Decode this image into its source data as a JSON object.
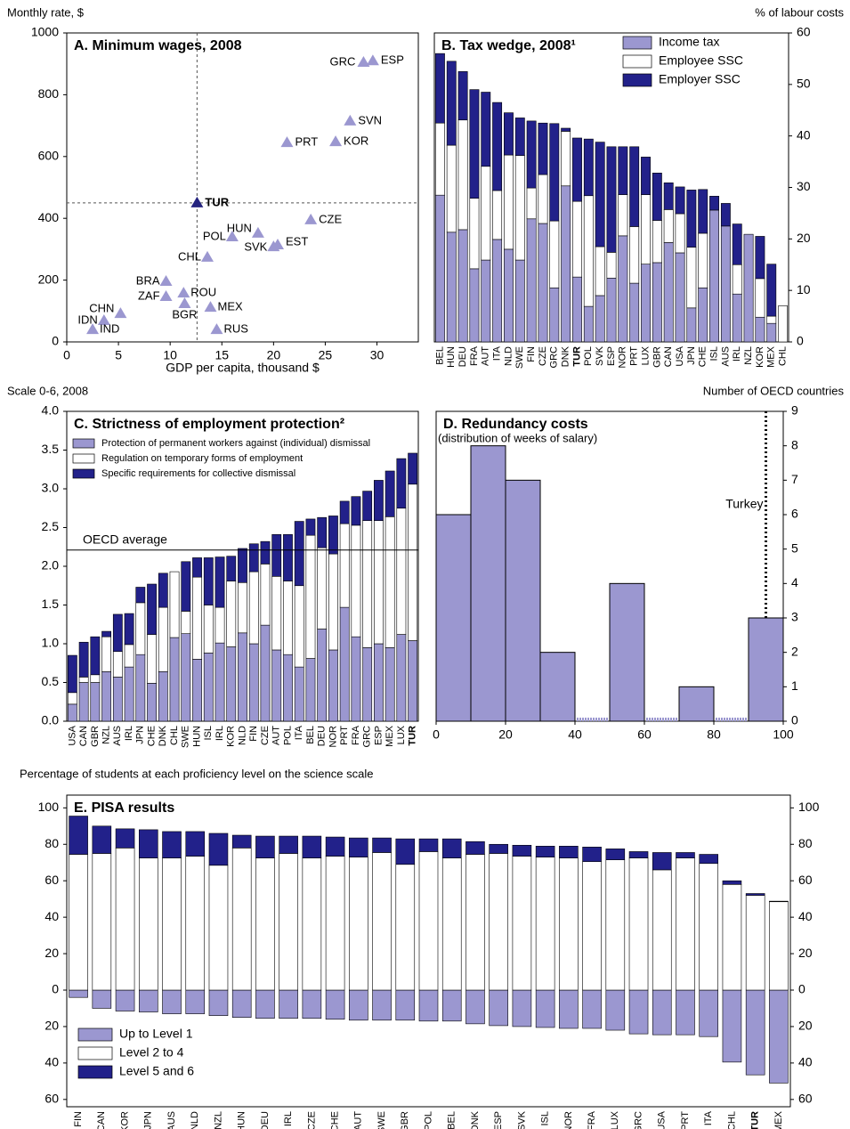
{
  "chart_data": [
    {
      "type": "scatter",
      "title": "A. Minimum wages, 2008",
      "y_label": "Monthly rate, $",
      "x_label": "GDP per capita, thousand $",
      "xlim": [
        0,
        34
      ],
      "ylim": [
        0,
        1000
      ],
      "xticks": [
        0,
        5,
        10,
        15,
        20,
        25,
        30
      ],
      "yticks": [
        0,
        200,
        400,
        600,
        800,
        1000
      ],
      "color": "#9b97d0",
      "highlight_color": "#24237f",
      "points": [
        {
          "label": "GRC",
          "x": 28.7,
          "y": 905
        },
        {
          "label": "ESP",
          "x": 29.6,
          "y": 910
        },
        {
          "label": "SVN",
          "x": 27.4,
          "y": 715
        },
        {
          "label": "PRT",
          "x": 21.3,
          "y": 645
        },
        {
          "label": "KOR",
          "x": 26.0,
          "y": 648
        },
        {
          "label": "TUR",
          "x": 12.6,
          "y": 450,
          "highlight": true
        },
        {
          "label": "CZE",
          "x": 23.6,
          "y": 395
        },
        {
          "label": "HUN",
          "x": 18.5,
          "y": 352
        },
        {
          "label": "POL",
          "x": 16.0,
          "y": 340
        },
        {
          "label": "EST",
          "x": 20.4,
          "y": 314
        },
        {
          "label": "SVK",
          "x": 20.0,
          "y": 308
        },
        {
          "label": "CHL",
          "x": 13.6,
          "y": 274
        },
        {
          "label": "BRA",
          "x": 9.6,
          "y": 196
        },
        {
          "label": "ZAF",
          "x": 9.6,
          "y": 147
        },
        {
          "label": "ROU",
          "x": 11.3,
          "y": 158
        },
        {
          "label": "BGR",
          "x": 11.4,
          "y": 124
        },
        {
          "label": "MEX",
          "x": 13.9,
          "y": 112
        },
        {
          "label": "CHN",
          "x": 5.2,
          "y": 92
        },
        {
          "label": "IDN",
          "x": 3.6,
          "y": 69
        },
        {
          "label": "IND",
          "x": 2.5,
          "y": 40
        },
        {
          "label": "RUS",
          "x": 14.5,
          "y": 40
        }
      ]
    },
    {
      "type": "bar",
      "title": "B. Tax wedge, 2008¹",
      "y_label": "% of labour costs",
      "ylim": [
        0,
        60
      ],
      "yticks": [
        0,
        10,
        20,
        30,
        40,
        50,
        60
      ],
      "highlight": "TUR",
      "categories": [
        "BEL",
        "HUN",
        "DEU",
        "FRA",
        "AUT",
        "ITA",
        "NLD",
        "SWE",
        "FIN",
        "CZE",
        "GRC",
        "DNK",
        "TUR",
        "POL",
        "SVK",
        "ESP",
        "NOR",
        "PRT",
        "LUX",
        "GBR",
        "CAN",
        "USA",
        "JPN",
        "CHE",
        "ISL",
        "AUS",
        "IRL",
        "NZL",
        "KOR",
        "MEX",
        "CHL"
      ],
      "series": [
        {
          "name": "Income tax",
          "color": "#9b97d0",
          "values": [
            28.5,
            21.3,
            21.8,
            14.2,
            15.9,
            19.9,
            18.0,
            15.9,
            23.9,
            23.0,
            10.5,
            30.3,
            12.6,
            6.9,
            9.0,
            12.4,
            20.6,
            11.4,
            15.1,
            15.4,
            19.3,
            17.3,
            6.6,
            10.5,
            25.6,
            22.5,
            9.3,
            20.9,
            4.8,
            3.6,
            0
          ]
        },
        {
          "name": "Employee SSC",
          "color": "#ffffff",
          "values": [
            14.0,
            16.9,
            21.3,
            13.7,
            18.2,
            9.5,
            18.3,
            20.3,
            6.0,
            9.5,
            13.0,
            10.6,
            14.7,
            21.5,
            9.5,
            5.0,
            8.0,
            11.0,
            13.5,
            8.2,
            6.4,
            7.6,
            11.8,
            10.6,
            0,
            0,
            5.7,
            0,
            7.5,
            1.4,
            7.0
          ]
        },
        {
          "name": "Employer SSC",
          "color": "#22218a",
          "values": [
            13.5,
            16.3,
            9.4,
            21.1,
            14.4,
            17.1,
            8.2,
            7.3,
            13.0,
            10.0,
            18.9,
            0.6,
            12.3,
            11.0,
            20.3,
            20.5,
            9.3,
            15.5,
            7.3,
            9.2,
            5.2,
            5.2,
            11.1,
            8.5,
            2.7,
            4.4,
            7.9,
            0,
            8.2,
            10.1,
            0
          ]
        }
      ]
    },
    {
      "type": "bar",
      "title": "C. Strictness of employment protection²",
      "y_label": "Scale 0-6, 2008",
      "ylim": [
        0,
        4
      ],
      "yticks": [
        {
          "value": 0,
          "label": "0.0"
        },
        0.5,
        {
          "value": 1,
          "label": "1.0"
        },
        1.5,
        {
          "value": 2,
          "label": "2.0"
        },
        2.5,
        {
          "value": 3,
          "label": "3.0"
        },
        3.5,
        {
          "value": 4,
          "label": "4.0"
        }
      ],
      "highlight": "TUR",
      "reference_line": {
        "label": "OECD average",
        "y": 2.21
      },
      "categories": [
        "USA",
        "CAN",
        "GBR",
        "NZL",
        "AUS",
        "IRL",
        "JPN",
        "CHE",
        "DNK",
        "CHL",
        "SWE",
        "HUN",
        "ISL",
        "IRL",
        "KOR",
        "NLD",
        "FIN",
        "CZE",
        "AUT",
        "POL",
        "ITA",
        "BEL",
        "DEU",
        "NOR",
        "PRT",
        "FRA",
        "GRC",
        "ESP",
        "MEX",
        "LUX",
        "TUR"
      ],
      "series": [
        {
          "name": "Protection of permanent workers against (individual) dismissal",
          "color": "#9b97d0",
          "values": [
            0.22,
            0.5,
            0.5,
            0.64,
            0.57,
            0.7,
            0.86,
            0.49,
            0.64,
            1.08,
            1.13,
            0.8,
            0.88,
            1.01,
            0.96,
            1.14,
            1.0,
            1.24,
            0.92,
            0.86,
            0.7,
            0.81,
            1.19,
            0.92,
            1.47,
            1.09,
            0.95,
            1.0,
            0.95,
            1.12,
            1.04
          ]
        },
        {
          "name": "Regulation on temporary forms of employment",
          "color": "#ffffff",
          "values": [
            0.15,
            0.07,
            0.1,
            0.45,
            0.33,
            0.29,
            0.67,
            0.63,
            0.83,
            0.85,
            0.29,
            1.06,
            0.62,
            0.46,
            0.85,
            0.65,
            0.93,
            0.79,
            0.95,
            0.95,
            1.05,
            1.59,
            1.05,
            1.24,
            1.08,
            1.44,
            1.64,
            1.59,
            1.69,
            1.63,
            2.02
          ]
        },
        {
          "name": "Specific requirements for collective dismissal",
          "color": "#22218a",
          "values": [
            0.48,
            0.45,
            0.49,
            0.07,
            0.48,
            0.4,
            0.2,
            0.65,
            0.44,
            0,
            0.64,
            0.25,
            0.61,
            0.65,
            0.32,
            0.44,
            0.36,
            0.29,
            0.54,
            0.6,
            0.83,
            0.21,
            0.39,
            0.49,
            0.29,
            0.37,
            0.38,
            0.52,
            0.59,
            0.64,
            0.4
          ]
        }
      ]
    },
    {
      "type": "histogram",
      "title": "D. Redundancy costs",
      "subtitle": "(distribution of weeks of salary)",
      "y_label": "Number of OECD countries",
      "xlim": [
        0,
        100
      ],
      "ylim": [
        0,
        9
      ],
      "xticks": [
        0,
        20,
        40,
        60,
        80,
        100
      ],
      "yticks": [
        0,
        1,
        2,
        3,
        4,
        5,
        6,
        7,
        8,
        9
      ],
      "color": "#9b97d0",
      "bins": [
        0,
        10,
        20,
        30,
        40,
        50,
        60,
        70,
        80,
        90,
        100
      ],
      "values": [
        6,
        8,
        7,
        2,
        0,
        4,
        0,
        1,
        0,
        3
      ],
      "reference_line": {
        "label": "Turkey",
        "x": 95
      }
    },
    {
      "type": "bar",
      "title": "E. PISA results",
      "y_label": "Percentage of students at each proficiency level on the science scale",
      "ylim": [
        -64,
        107
      ],
      "yticks": [
        {
          "value": -60,
          "label": "60"
        },
        {
          "value": -40,
          "label": "40"
        },
        {
          "value": -20,
          "label": "20"
        },
        0,
        20,
        40,
        60,
        80,
        100
      ],
      "highlight": "TUR",
      "categories": [
        "FIN",
        "CAN",
        "KOR",
        "JPN",
        "AUS",
        "NLD",
        "NZL",
        "HUN",
        "DEU",
        "IRL",
        "CZE",
        "CHE",
        "AUT",
        "SWE",
        "GBR",
        "POL",
        "BEL",
        "DNK",
        "ESP",
        "SVK",
        "ISL",
        "NOR",
        "FRA",
        "LUX",
        "GRC",
        "USA",
        "PRT",
        "ITA",
        "CHL",
        "TUR",
        "MEX"
      ],
      "series": [
        {
          "name": "Up to Level 1",
          "color": "#9b97d0",
          "values": [
            -4,
            -10,
            -11.5,
            -12,
            -13,
            -13,
            -14,
            -15,
            -15.5,
            -15.5,
            -15.5,
            -16,
            -16.5,
            -16.5,
            -16.5,
            -17,
            -17,
            -18.5,
            -19.5,
            -20,
            -20.5,
            -21,
            -21,
            -22,
            -24,
            -24.5,
            -24.5,
            -25.5,
            -39.5,
            -46.5,
            -51
          ]
        },
        {
          "name": "Level 2 to 4",
          "color": "#ffffff",
          "values": [
            74.5,
            75,
            78,
            72.5,
            72.5,
            73.5,
            68.5,
            78,
            72.5,
            75,
            72.5,
            73.5,
            73,
            75.5,
            69,
            76,
            72.5,
            74.5,
            75,
            73.5,
            73,
            72.5,
            70.5,
            71.5,
            72.5,
            66,
            72.5,
            69.5,
            58,
            52,
            48.5
          ]
        },
        {
          "name": "Level 5 and 6",
          "color": "#22218a",
          "values": [
            21,
            15,
            10.5,
            15.5,
            14.5,
            13.5,
            17.5,
            7,
            12,
            9.5,
            12,
            10.5,
            10.5,
            8,
            14,
            7,
            10.5,
            7,
            5,
            6,
            6,
            6.5,
            8,
            6,
            3.5,
            9.5,
            3,
            5,
            2,
            1,
            0.3
          ]
        }
      ]
    }
  ]
}
